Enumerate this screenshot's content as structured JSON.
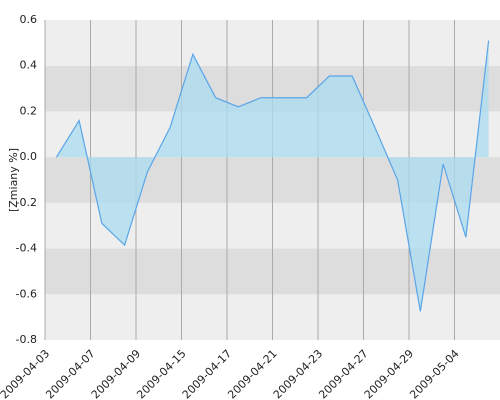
{
  "chart_data": {
    "type": "area",
    "y_label": "[Zmiany %]",
    "x": [
      0.5,
      1.5,
      2.5,
      3.5,
      4.5,
      5.5,
      6.5,
      7.5,
      8.5,
      9.5,
      10.5,
      11.5,
      12.5,
      13.5,
      14.5,
      15.5,
      16.5,
      17.5,
      18.5,
      19.5
    ],
    "series": [
      {
        "color": "#5aa5e8",
        "fill": "#a9dbef",
        "values": [
          0,
          0.16,
          -0.29,
          -0.385,
          -0.065,
          0.13,
          0.45,
          0.26,
          0.22,
          0.26,
          0.26,
          0.26,
          0.355,
          0.355,
          0.13,
          -0.1,
          -0.675,
          -0.03,
          -0.35,
          0.51
        ]
      }
    ],
    "xlim": [
      0,
      20
    ],
    "xticks": [
      {
        "value": 0,
        "label": "2009-04-03"
      },
      {
        "value": 2,
        "label": "2009-04-07"
      },
      {
        "value": 4,
        "label": "2009-04-09"
      },
      {
        "value": 6,
        "label": "2009-04-15"
      },
      {
        "value": 8,
        "label": "2009-04-17"
      },
      {
        "value": 10,
        "label": "2009-04-21"
      },
      {
        "value": 12,
        "label": "2009-04-23"
      },
      {
        "value": 14,
        "label": "2009-04-27"
      },
      {
        "value": 16,
        "label": "2009-04-29"
      },
      {
        "value": 18,
        "label": "2009-05-04"
      }
    ],
    "ylim": [
      -0.8,
      0.6
    ],
    "yticks": [
      -0.8,
      -0.6,
      -0.4,
      -0.2,
      {
        "value": 0,
        "label": "0.0"
      },
      0.2,
      0.4,
      0.6
    ],
    "band_colors": [
      "#eeeeee",
      "#dddddd"
    ],
    "grid": true
  }
}
